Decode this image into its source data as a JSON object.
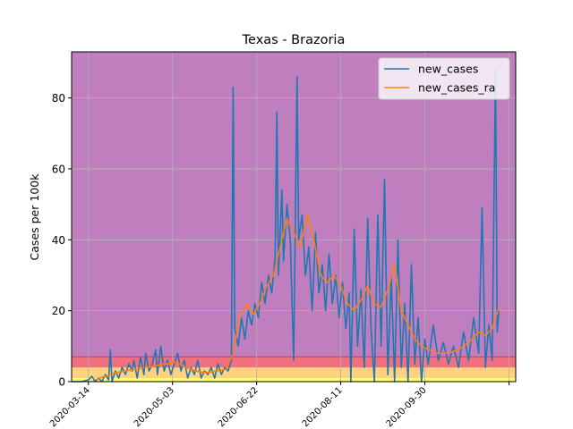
{
  "chart_data": {
    "type": "line",
    "title": "Texas - Brazoria",
    "xlabel": "",
    "ylabel": "Cases per 100k",
    "x_range": [
      "2020-03-04",
      "2020-11-23"
    ],
    "ylim": [
      0,
      93
    ],
    "y_ticks": [
      0,
      20,
      40,
      60,
      80
    ],
    "x_ticks": [
      "2020-03-14",
      "2020-05-03",
      "2020-06-22",
      "2020-08-11",
      "2020-09-30",
      "2020-11-19"
    ],
    "x_tick_labels": [
      "2020-03-14",
      "2020-05-03",
      "2020-06-22",
      "2020-08-11",
      "2020-09-30",
      ""
    ],
    "grid": true,
    "legend_position": "top-right",
    "risk_bands": [
      {
        "from": 0,
        "to": 1,
        "color": "#ffff66"
      },
      {
        "from": 1,
        "to": 4,
        "color": "#ffd27f"
      },
      {
        "from": 4,
        "to": 7,
        "color": "#f07080"
      },
      {
        "from": 7,
        "to": 93,
        "color": "#bf7fbf"
      }
    ],
    "series": [
      {
        "name": "new_cases",
        "color": "#1f77b4",
        "points": [
          [
            "2020-03-04",
            0
          ],
          [
            "2020-03-10",
            0
          ],
          [
            "2020-03-14",
            0.5
          ],
          [
            "2020-03-16",
            1.5
          ],
          [
            "2020-03-18",
            0
          ],
          [
            "2020-03-20",
            1
          ],
          [
            "2020-03-22",
            0
          ],
          [
            "2020-03-24",
            2
          ],
          [
            "2020-03-26",
            0.5
          ],
          [
            "2020-03-27",
            9
          ],
          [
            "2020-03-28",
            0
          ],
          [
            "2020-03-30",
            3
          ],
          [
            "2020-04-01",
            1
          ],
          [
            "2020-04-03",
            4
          ],
          [
            "2020-04-05",
            2
          ],
          [
            "2020-04-07",
            5
          ],
          [
            "2020-04-09",
            3
          ],
          [
            "2020-04-10",
            6
          ],
          [
            "2020-04-12",
            1
          ],
          [
            "2020-04-14",
            7
          ],
          [
            "2020-04-16",
            2
          ],
          [
            "2020-04-17",
            8
          ],
          [
            "2020-04-19",
            3
          ],
          [
            "2020-04-21",
            5
          ],
          [
            "2020-04-23",
            9
          ],
          [
            "2020-04-24",
            2
          ],
          [
            "2020-04-26",
            10
          ],
          [
            "2020-04-28",
            3
          ],
          [
            "2020-04-30",
            6
          ],
          [
            "2020-05-02",
            2
          ],
          [
            "2020-05-04",
            5
          ],
          [
            "2020-05-06",
            8
          ],
          [
            "2020-05-08",
            3
          ],
          [
            "2020-05-10",
            6
          ],
          [
            "2020-05-12",
            1
          ],
          [
            "2020-05-14",
            4
          ],
          [
            "2020-05-16",
            2
          ],
          [
            "2020-05-18",
            6
          ],
          [
            "2020-05-20",
            1
          ],
          [
            "2020-05-22",
            3
          ],
          [
            "2020-05-24",
            2
          ],
          [
            "2020-05-26",
            4
          ],
          [
            "2020-05-28",
            1
          ],
          [
            "2020-05-30",
            5
          ],
          [
            "2020-06-01",
            2
          ],
          [
            "2020-06-03",
            4
          ],
          [
            "2020-06-05",
            3
          ],
          [
            "2020-06-07",
            6
          ],
          [
            "2020-06-08",
            83
          ],
          [
            "2020-06-09",
            15
          ],
          [
            "2020-06-11",
            10
          ],
          [
            "2020-06-13",
            18
          ],
          [
            "2020-06-15",
            12
          ],
          [
            "2020-06-17",
            20
          ],
          [
            "2020-06-19",
            16
          ],
          [
            "2020-06-21",
            22
          ],
          [
            "2020-06-23",
            18
          ],
          [
            "2020-06-25",
            28
          ],
          [
            "2020-06-27",
            22
          ],
          [
            "2020-06-29",
            30
          ],
          [
            "2020-07-01",
            25
          ],
          [
            "2020-07-03",
            35
          ],
          [
            "2020-07-04",
            76
          ],
          [
            "2020-07-05",
            30
          ],
          [
            "2020-07-07",
            54
          ],
          [
            "2020-07-08",
            34
          ],
          [
            "2020-07-10",
            50
          ],
          [
            "2020-07-12",
            40
          ],
          [
            "2020-07-14",
            6
          ],
          [
            "2020-07-15",
            45
          ],
          [
            "2020-07-16",
            86
          ],
          [
            "2020-07-17",
            40
          ],
          [
            "2020-07-19",
            47
          ],
          [
            "2020-07-21",
            30
          ],
          [
            "2020-07-23",
            38
          ],
          [
            "2020-07-25",
            20
          ],
          [
            "2020-07-27",
            42
          ],
          [
            "2020-07-29",
            25
          ],
          [
            "2020-07-31",
            33
          ],
          [
            "2020-08-02",
            20
          ],
          [
            "2020-08-04",
            36
          ],
          [
            "2020-08-06",
            22
          ],
          [
            "2020-08-08",
            30
          ],
          [
            "2020-08-10",
            18
          ],
          [
            "2020-08-12",
            28
          ],
          [
            "2020-08-14",
            15
          ],
          [
            "2020-08-16",
            25
          ],
          [
            "2020-08-17",
            0
          ],
          [
            "2020-08-19",
            43
          ],
          [
            "2020-08-21",
            10
          ],
          [
            "2020-08-23",
            26
          ],
          [
            "2020-08-25",
            4
          ],
          [
            "2020-08-27",
            46
          ],
          [
            "2020-08-29",
            15
          ],
          [
            "2020-08-31",
            0
          ],
          [
            "2020-09-02",
            47
          ],
          [
            "2020-09-04",
            10
          ],
          [
            "2020-09-06",
            57
          ],
          [
            "2020-09-08",
            2
          ],
          [
            "2020-09-10",
            30
          ],
          [
            "2020-09-12",
            0
          ],
          [
            "2020-09-14",
            40
          ],
          [
            "2020-09-16",
            4
          ],
          [
            "2020-09-18",
            22
          ],
          [
            "2020-09-20",
            0
          ],
          [
            "2020-09-22",
            33
          ],
          [
            "2020-09-24",
            5
          ],
          [
            "2020-09-26",
            18
          ],
          [
            "2020-09-28",
            0
          ],
          [
            "2020-09-30",
            12
          ],
          [
            "2020-10-02",
            5
          ],
          [
            "2020-10-05",
            16
          ],
          [
            "2020-10-08",
            6
          ],
          [
            "2020-10-11",
            11
          ],
          [
            "2020-10-14",
            5
          ],
          [
            "2020-10-17",
            10
          ],
          [
            "2020-10-20",
            4
          ],
          [
            "2020-10-23",
            14
          ],
          [
            "2020-10-26",
            6
          ],
          [
            "2020-10-29",
            18
          ],
          [
            "2020-11-01",
            8
          ],
          [
            "2020-11-03",
            49
          ],
          [
            "2020-11-05",
            4
          ],
          [
            "2020-11-07",
            16
          ],
          [
            "2020-11-09",
            6
          ],
          [
            "2020-11-11",
            88
          ],
          [
            "2020-11-12",
            14
          ],
          [
            "2020-11-13",
            20
          ]
        ]
      },
      {
        "name": "new_cases_ra",
        "color": "#ff7f0e",
        "points": [
          [
            "2020-03-18",
            0.5
          ],
          [
            "2020-03-24",
            1.5
          ],
          [
            "2020-03-30",
            2.5
          ],
          [
            "2020-04-05",
            3
          ],
          [
            "2020-04-11",
            3.5
          ],
          [
            "2020-04-17",
            4
          ],
          [
            "2020-04-23",
            4.5
          ],
          [
            "2020-04-29",
            5
          ],
          [
            "2020-05-05",
            5.5
          ],
          [
            "2020-05-11",
            4
          ],
          [
            "2020-05-17",
            3
          ],
          [
            "2020-05-23",
            2.5
          ],
          [
            "2020-05-29",
            3
          ],
          [
            "2020-06-04",
            3.5
          ],
          [
            "2020-06-08",
            8
          ],
          [
            "2020-06-12",
            18
          ],
          [
            "2020-06-16",
            22
          ],
          [
            "2020-06-20",
            19
          ],
          [
            "2020-06-24",
            22
          ],
          [
            "2020-06-28",
            27
          ],
          [
            "2020-07-02",
            30
          ],
          [
            "2020-07-06",
            38
          ],
          [
            "2020-07-10",
            46
          ],
          [
            "2020-07-14",
            42
          ],
          [
            "2020-07-18",
            38
          ],
          [
            "2020-07-22",
            47
          ],
          [
            "2020-07-26",
            40
          ],
          [
            "2020-07-30",
            30
          ],
          [
            "2020-08-03",
            28
          ],
          [
            "2020-08-07",
            30
          ],
          [
            "2020-08-11",
            27
          ],
          [
            "2020-08-15",
            22
          ],
          [
            "2020-08-19",
            20
          ],
          [
            "2020-08-23",
            23
          ],
          [
            "2020-08-27",
            27
          ],
          [
            "2020-08-31",
            22
          ],
          [
            "2020-09-04",
            21
          ],
          [
            "2020-09-08",
            26
          ],
          [
            "2020-09-12",
            33
          ],
          [
            "2020-09-16",
            20
          ],
          [
            "2020-09-20",
            16
          ],
          [
            "2020-09-24",
            12
          ],
          [
            "2020-09-28",
            10
          ],
          [
            "2020-10-02",
            9
          ],
          [
            "2020-10-08",
            8
          ],
          [
            "2020-10-14",
            8
          ],
          [
            "2020-10-20",
            9
          ],
          [
            "2020-10-26",
            11
          ],
          [
            "2020-11-01",
            14
          ],
          [
            "2020-11-05",
            13
          ],
          [
            "2020-11-09",
            15
          ],
          [
            "2020-11-13",
            21
          ]
        ]
      }
    ]
  }
}
